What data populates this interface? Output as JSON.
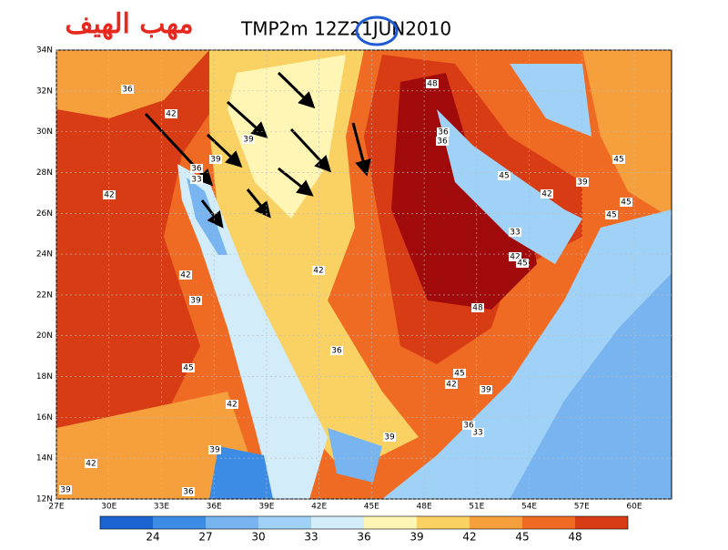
{
  "header": {
    "arabic_title": "مهب الهيف",
    "title": "TMP2m 12Z21JUN2010"
  },
  "map": {
    "lat_labels": [
      "34N",
      "32N",
      "30N",
      "28N",
      "26N",
      "24N",
      "22N",
      "20N",
      "18N",
      "16N",
      "14N",
      "12N"
    ],
    "lon_labels": [
      "27E",
      "30E",
      "33E",
      "36E",
      "39E",
      "42E",
      "45E",
      "48E",
      "51E",
      "54E",
      "57E",
      "60E"
    ],
    "contour_labels": [
      "36",
      "42",
      "39",
      "42",
      "48",
      "36",
      "39",
      "36",
      "42",
      "45",
      "45",
      "36",
      "33",
      "39",
      "45",
      "33",
      "45",
      "42",
      "42",
      "39",
      "42",
      "36",
      "48",
      "45",
      "45",
      "42",
      "39",
      "33",
      "36",
      "39",
      "42",
      "39",
      "36",
      "39",
      "45",
      "42"
    ]
  },
  "colorbar": {
    "colors": [
      "#1a64d2",
      "#3c8ce6",
      "#78b4f0",
      "#a0d2f8",
      "#d2ecfa",
      "#fff5b4",
      "#fad264",
      "#f5a03c",
      "#ef6a22",
      "#d83c14",
      "#a00a0a"
    ],
    "levels": [
      24,
      27,
      30,
      33,
      36,
      39,
      42,
      45,
      48
    ]
  }
}
